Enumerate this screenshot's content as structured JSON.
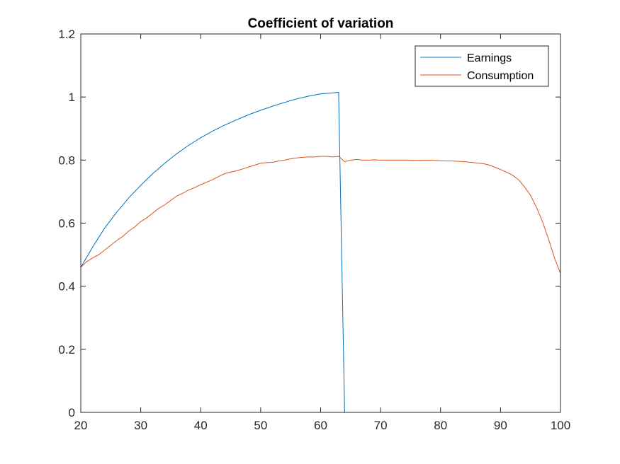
{
  "chart_data": {
    "type": "line",
    "title": "Coefficient of variation",
    "xlabel": "",
    "ylabel": "",
    "xlim": [
      20,
      100
    ],
    "ylim": [
      0,
      1.2
    ],
    "xticks": [
      20,
      30,
      40,
      50,
      60,
      70,
      80,
      90,
      100
    ],
    "yticks": [
      0,
      0.2,
      0.4,
      0.6,
      0.8,
      1,
      1.2
    ],
    "xtick_labels": [
      "20",
      "30",
      "40",
      "50",
      "60",
      "70",
      "80",
      "90",
      "100"
    ],
    "ytick_labels": [
      "0",
      "0.2",
      "0.4",
      "0.6",
      "0.8",
      "1",
      "1.2"
    ],
    "grid": false,
    "legend_position": "top-right",
    "series": [
      {
        "name": "Earnings",
        "color": "#0072bd",
        "x": [
          20,
          22,
          24,
          26,
          28,
          30,
          32,
          34,
          36,
          38,
          40,
          42,
          44,
          46,
          48,
          50,
          52,
          54,
          56,
          58,
          60,
          62,
          63,
          64,
          70,
          80,
          90,
          100
        ],
        "y": [
          0.46,
          0.525,
          0.585,
          0.635,
          0.68,
          0.72,
          0.757,
          0.79,
          0.82,
          0.847,
          0.871,
          0.892,
          0.911,
          0.928,
          0.944,
          0.958,
          0.971,
          0.983,
          0.994,
          1.003,
          1.01,
          1.013,
          1.015,
          0.0,
          0.0,
          0.0,
          0.0,
          0.0
        ]
      },
      {
        "name": "Consumption",
        "color": "#d95319",
        "x": [
          20,
          21,
          22,
          23,
          24,
          25,
          26,
          27,
          28,
          29,
          30,
          31,
          32,
          33,
          34,
          35,
          36,
          37,
          38,
          39,
          40,
          41,
          42,
          43,
          44,
          45,
          46,
          47,
          48,
          49,
          50,
          51,
          52,
          53,
          54,
          55,
          56,
          57,
          58,
          59,
          60,
          61,
          62,
          63,
          64,
          65,
          66,
          67,
          68,
          69,
          70,
          71,
          72,
          73,
          74,
          75,
          76,
          77,
          78,
          79,
          80,
          81,
          82,
          83,
          84,
          85,
          86,
          87,
          88,
          89,
          90,
          91,
          92,
          93,
          94,
          95,
          96,
          97,
          98,
          99,
          100
        ],
        "y": [
          0.46,
          0.478,
          0.49,
          0.5,
          0.515,
          0.53,
          0.545,
          0.558,
          0.575,
          0.588,
          0.605,
          0.617,
          0.632,
          0.647,
          0.658,
          0.672,
          0.686,
          0.695,
          0.705,
          0.713,
          0.722,
          0.73,
          0.738,
          0.748,
          0.757,
          0.762,
          0.766,
          0.772,
          0.778,
          0.784,
          0.79,
          0.792,
          0.793,
          0.797,
          0.8,
          0.804,
          0.807,
          0.809,
          0.81,
          0.81,
          0.812,
          0.812,
          0.81,
          0.812,
          0.795,
          0.8,
          0.802,
          0.8,
          0.8,
          0.801,
          0.8,
          0.8,
          0.8,
          0.8,
          0.8,
          0.8,
          0.799,
          0.8,
          0.8,
          0.799,
          0.798,
          0.797,
          0.797,
          0.796,
          0.795,
          0.793,
          0.791,
          0.789,
          0.785,
          0.778,
          0.77,
          0.762,
          0.752,
          0.738,
          0.715,
          0.688,
          0.65,
          0.605,
          0.55,
          0.49,
          0.44
        ]
      }
    ]
  }
}
